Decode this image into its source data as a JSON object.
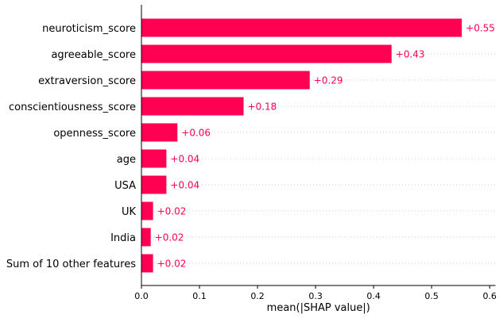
{
  "chart_data": {
    "type": "bar",
    "orientation": "horizontal",
    "categories": [
      "neuroticism_score",
      "agreeable_score",
      "extraversion_score",
      "conscientiousness_score",
      "openness_score",
      "age",
      "USA",
      "UK",
      "India",
      "Sum of 10 other features"
    ],
    "values": [
      0.552,
      0.431,
      0.29,
      0.176,
      0.062,
      0.043,
      0.043,
      0.02,
      0.016,
      0.02
    ],
    "value_labels": [
      "+0.55",
      "+0.43",
      "+0.29",
      "+0.18",
      "+0.06",
      "+0.04",
      "+0.04",
      "+0.02",
      "+0.02",
      "+0.02"
    ],
    "xlabel": "mean(|SHAP value|)",
    "ylabel": "",
    "xlim": [
      0,
      0.61
    ],
    "xticks": [
      0.0,
      0.1,
      0.2,
      0.3,
      0.4,
      0.5,
      0.6
    ],
    "xtick_labels": [
      "0.0",
      "0.1",
      "0.2",
      "0.3",
      "0.4",
      "0.5",
      "0.6"
    ],
    "grid": "horizontal dotted row guides",
    "colors": {
      "bar": "#ff0052",
      "value_text": "#ff0052",
      "gridline": "#cccccc",
      "axis": "#000000"
    }
  }
}
